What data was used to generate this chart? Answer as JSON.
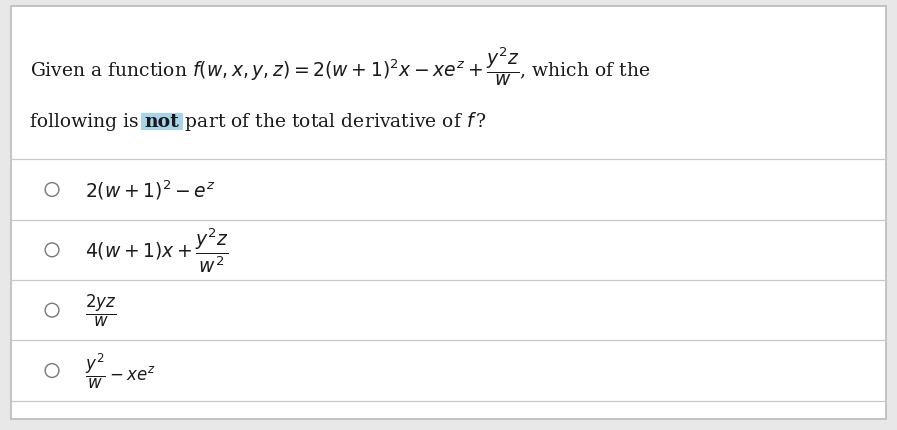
{
  "bg_color": "#e8e8e8",
  "panel_color": "#ffffff",
  "not_highlight": "#a8d4ea",
  "separator_color": "#c8c8c8",
  "text_color": "#1a1a1a",
  "circle_color": "#777777",
  "font_size_title": 13.5,
  "font_size_option1": 13.5,
  "font_size_option2": 13.5,
  "font_size_option3": 12.0,
  "font_size_option4": 12.0,
  "title_part1": "Given a function $f(w, x, y, z) = 2(w+1)^2 x - xe^z + \\dfrac{y^2 z}{w}$, which of the",
  "title_line2_pre": "following is ",
  "title_line2_not": "not",
  "title_line2_post": " part of the total derivative of $f\\,$?",
  "options": [
    "$2(w+1)^2 - e^z$",
    "$4(w+1)x + \\dfrac{y^2 z}{w^2}$",
    "$\\dfrac{2yz}{w}$",
    "$\\dfrac{y^2}{w} - xe^z$"
  ]
}
